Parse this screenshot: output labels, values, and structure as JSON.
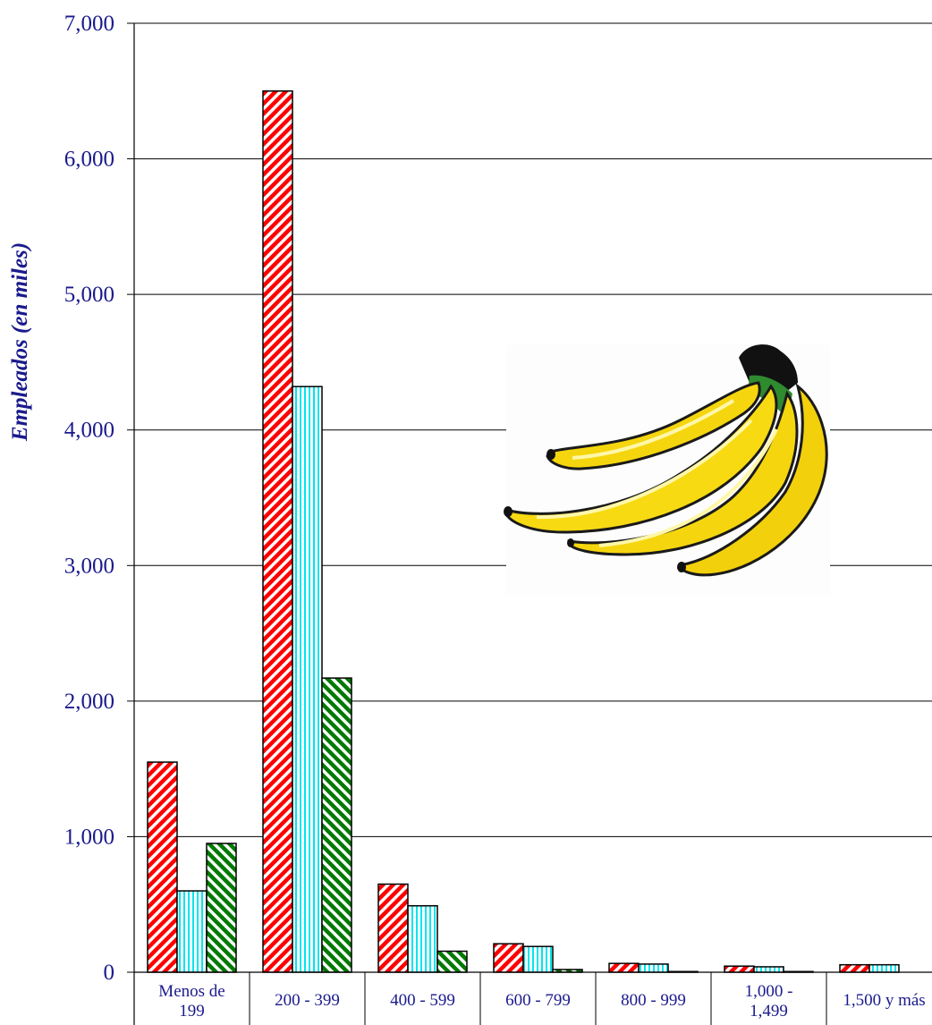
{
  "chart_data": {
    "type": "bar",
    "ylabel": "Empleados (en miles)",
    "ylim": [
      0,
      7000
    ],
    "yticks": [
      "0",
      "1,000",
      "2,000",
      "3,000",
      "4,000",
      "5,000",
      "6,000",
      "7,000"
    ],
    "categories": [
      [
        "Menos de",
        "199"
      ],
      [
        "200 - 399"
      ],
      [
        "400 - 599"
      ],
      [
        "600 - 799"
      ],
      [
        "800 - 999"
      ],
      [
        "1,000 -",
        "1,499"
      ],
      [
        "1,500 y más"
      ]
    ],
    "series": [
      {
        "color": "#ff0000",
        "pattern": "diagonal-up",
        "values": [
          1550,
          6500,
          650,
          210,
          65,
          45,
          55
        ]
      },
      {
        "color": "#00e5ee",
        "pattern": "vertical",
        "values": [
          600,
          4320,
          490,
          190,
          60,
          40,
          55
        ]
      },
      {
        "color": "#007a00",
        "pattern": "diagonal-down",
        "values": [
          950,
          2170,
          155,
          20,
          5,
          5,
          0
        ]
      }
    ],
    "grid": true,
    "image": "banana-bunch"
  }
}
